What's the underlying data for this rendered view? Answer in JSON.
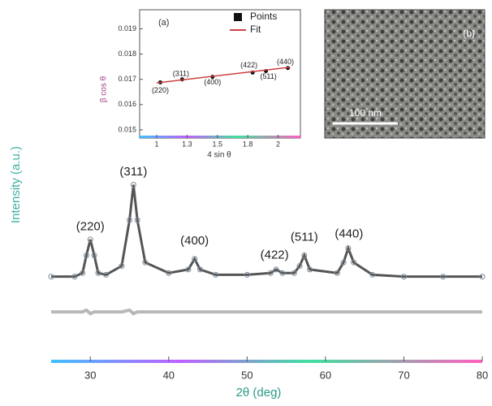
{
  "chart_data": [
    {
      "type": "line",
      "xlabel": "2θ (deg)",
      "ylabel": "Intensity (a.u.)",
      "x": [
        25,
        28,
        29,
        29.5,
        30,
        30.5,
        31,
        32,
        34,
        35,
        35.5,
        36,
        37,
        40,
        42.5,
        43.3,
        44,
        46,
        50,
        53,
        53.7,
        54.5,
        56,
        56.7,
        57.3,
        58,
        61.5,
        62.3,
        62.9,
        63.6,
        66,
        70,
        75,
        80
      ],
      "series": [
        {
          "color": "#555555",
          "values": [
            24,
            24,
            25,
            30,
            34.5,
            30,
            25,
            24.5,
            27,
            40,
            50,
            40,
            28,
            25,
            26,
            29,
            26,
            24.5,
            24.5,
            25,
            26,
            25,
            25,
            27,
            30,
            26,
            25,
            28,
            32,
            28,
            24.5,
            24,
            24,
            24
          ]
        },
        {
          "color": "#b8b8b8",
          "values": [
            14,
            14,
            14,
            14.5,
            13.5,
            14,
            14,
            14,
            14,
            14.5,
            13.5,
            14,
            14,
            14,
            14,
            14,
            14,
            14,
            14,
            14,
            14,
            14,
            14,
            14,
            14,
            14,
            14,
            14,
            14,
            14,
            14,
            14,
            14,
            14
          ]
        }
      ],
      "annotations": [
        {
          "text": "(220)",
          "x": 30,
          "y": 38
        },
        {
          "text": "(311)",
          "x": 35.5,
          "y": 53.5
        },
        {
          "text": "(400)",
          "x": 43.3,
          "y": 34
        },
        {
          "text": "(422)",
          "x": 53.5,
          "y": 30
        },
        {
          "text": "(511)",
          "x": 57.3,
          "y": 35
        },
        {
          "text": "(440)",
          "x": 63,
          "y": 36
        }
      ],
      "xlim": [
        25,
        80
      ],
      "xticks": [
        30,
        40,
        50,
        60,
        70,
        80
      ],
      "ylim": [
        0,
        100
      ]
    },
    {
      "type": "scatter",
      "title": "(a)",
      "xlabel": "4 sin θ",
      "ylabel": "β cos θ",
      "series": [
        {
          "name": "Points",
          "color": "#111111",
          "style": "points",
          "x": [
            1.03,
            1.21,
            1.46,
            1.79,
            1.9,
            2.08
          ],
          "values": [
            0.01688,
            0.017,
            0.0171,
            0.01727,
            0.01733,
            0.01745
          ]
        },
        {
          "name": "Fit",
          "color": "#d04040",
          "style": "line",
          "x": [
            1.0,
            2.1
          ],
          "values": [
            0.01686,
            0.01748
          ]
        }
      ],
      "annotations": [
        {
          "text": "(220)",
          "x": 1.03,
          "y": 0.01655
        },
        {
          "text": "(311)",
          "x": 1.2,
          "y": 0.01722
        },
        {
          "text": "(400)",
          "x": 1.46,
          "y": 0.01687
        },
        {
          "text": "(422)",
          "x": 1.76,
          "y": 0.01755
        },
        {
          "text": "(511)",
          "x": 1.92,
          "y": 0.0171
        },
        {
          "text": "(440)",
          "x": 2.06,
          "y": 0.01768
        }
      ],
      "xlim": [
        0.9,
        2.15
      ],
      "xticks": [
        1.0,
        {
          "value": 1.25,
          "label": "1.3"
        },
        1.5,
        {
          "value": 1.75,
          "label": "1.8"
        },
        2.0
      ],
      "ylim": [
        0.0149,
        0.0195
      ],
      "yticks": [
        0.015,
        0.016,
        0.017,
        0.018,
        0.019
      ]
    }
  ],
  "image_inset": {
    "label": "(b)",
    "scale_bar": "100 nm"
  }
}
